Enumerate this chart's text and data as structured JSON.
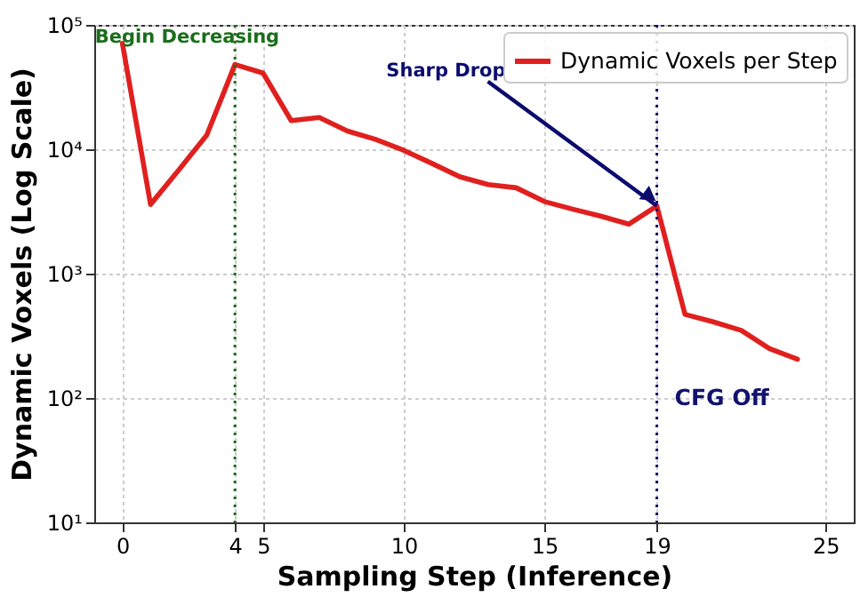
{
  "chart_data": {
    "type": "line",
    "xlabel": "Sampling Step (Inference)",
    "ylabel": "Dynamic Voxels (Log Scale)",
    "x": [
      0,
      1,
      2,
      3,
      4,
      5,
      6,
      7,
      8,
      9,
      10,
      11,
      12,
      13,
      14,
      15,
      16,
      17,
      18,
      19,
      20,
      21,
      22,
      23,
      24
    ],
    "series": [
      {
        "name": "Dynamic Voxels per Step",
        "color": "#e0201e",
        "values": [
          71000,
          3600,
          6800,
          13000,
          48000,
          41000,
          17000,
          18000,
          14000,
          12000,
          9800,
          7700,
          6000,
          5200,
          4900,
          3800,
          3300,
          2900,
          2500,
          3500,
          470,
          410,
          350,
          250,
          205
        ]
      }
    ],
    "xlim": [
      -1,
      26
    ],
    "xticks": [
      0,
      4,
      5,
      10,
      15,
      19,
      25
    ],
    "ylim": [
      10,
      100000
    ],
    "yticks": [
      {
        "value": 10,
        "label": "10¹"
      },
      {
        "value": 100,
        "label": "10²"
      },
      {
        "value": 1000,
        "label": "10³"
      },
      {
        "value": 10000,
        "label": "10⁴"
      },
      {
        "value": 100000,
        "label": "10⁵"
      }
    ],
    "log": "y",
    "grid": true,
    "legend": "top right",
    "line_style": "solid",
    "ref_lines": [
      {
        "axis": "x",
        "value": 4,
        "label": "Begin Decreasing",
        "color": "#1a6e1a",
        "line_style": "dotted"
      },
      {
        "axis": "x",
        "value": 19,
        "label": "CFG Off",
        "color": "#12126e",
        "line_style": "dotted"
      }
    ],
    "annotations": [
      {
        "text": "Sharp Drop",
        "x": 19,
        "y": 3500
      }
    ]
  }
}
